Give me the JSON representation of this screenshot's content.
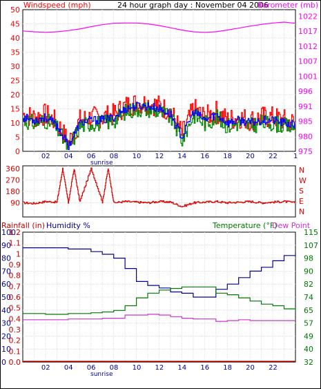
{
  "colors": {
    "windspeed": "#ff0000",
    "barometer": "#ff00ff",
    "humidity": "#000099",
    "temperature": "#007700",
    "dewpoint": "#cc33cc",
    "rainfall": "#cc0000",
    "direction": "#dd0000",
    "windavg": "#0000ff",
    "windgreen": "#008800"
  },
  "chart_data": [
    {
      "type": "line",
      "title": "24 hour graph day : November 04 2006",
      "ylabel_left": "Windspeed (mph)",
      "ylabel_right": "Barometer (mb)",
      "ylim_left": [
        0,
        50
      ],
      "yticks_left": [
        "0",
        "5",
        "10",
        "15",
        "20",
        "25",
        "30",
        "35",
        "40",
        "45",
        "50"
      ],
      "ylim_right": [
        975,
        1025
      ],
      "yticks_right": [
        "975",
        "980",
        "985",
        "991",
        "996",
        "1001",
        "1007",
        "1012",
        "1017",
        "1022"
      ],
      "xticks": [
        "02",
        "04",
        "06",
        "08",
        "10",
        "12",
        "14",
        "16",
        "18",
        "20",
        "22",
        "1"
      ],
      "xannotation": "sunrise",
      "grid": true,
      "series": [
        {
          "name": "Windspeed (mph)",
          "axis": "left",
          "x": [
            0,
            1,
            2,
            3,
            4,
            5,
            6,
            7,
            8,
            9,
            10,
            11,
            12,
            13,
            14,
            15,
            16,
            17,
            18,
            19,
            20,
            21,
            22,
            23,
            24
          ],
          "values": [
            13,
            12,
            13,
            10,
            3,
            11,
            12,
            12,
            13,
            16,
            17,
            17,
            16,
            14,
            6,
            15,
            12,
            14,
            11,
            12,
            11,
            12,
            12,
            11,
            10
          ]
        },
        {
          "name": "Barometer (mb)",
          "axis": "right",
          "x": [
            0,
            1,
            2,
            3,
            4,
            5,
            6,
            7,
            8,
            9,
            10,
            11,
            12,
            13,
            14,
            15,
            16,
            17,
            18,
            19,
            20,
            21,
            22,
            23,
            24
          ],
          "values": [
            1017.5,
            1017.2,
            1017.0,
            1017.2,
            1017.6,
            1018.2,
            1019.0,
            1019.7,
            1020.2,
            1020.3,
            1020.3,
            1020.0,
            1019.4,
            1018.6,
            1017.8,
            1017.2,
            1017.0,
            1017.2,
            1017.8,
            1018.5,
            1019.2,
            1019.8,
            1020.3,
            1020.6,
            1020.2
          ]
        }
      ]
    },
    {
      "type": "line",
      "ylim": [
        0,
        360
      ],
      "yticks": [
        "90",
        "180",
        "270",
        "360"
      ],
      "yticks_right": [
        "N",
        "W",
        "S",
        "E",
        "N"
      ],
      "series": [
        {
          "name": "Wind direction",
          "x": [
            0,
            1,
            2,
            3,
            3.5,
            4,
            4.5,
            5,
            6,
            7,
            7.5,
            8,
            9,
            10,
            11,
            12,
            13,
            14,
            15,
            16,
            17,
            18,
            19,
            20,
            21,
            22,
            23,
            24
          ],
          "values": [
            90,
            85,
            100,
            95,
            360,
            90,
            360,
            100,
            360,
            95,
            360,
            90,
            100,
            95,
            90,
            100,
            95,
            60,
            90,
            95,
            100,
            90,
            95,
            100,
            90,
            95,
            100,
            90
          ]
        }
      ]
    },
    {
      "type": "line",
      "ylabel_left": "Rainfall (in)",
      "ylabel_left2": "Humidity %",
      "ylabel_right": "Temperature (°F)",
      "ylabel_right2": "Dew Point",
      "ylim": [
        0,
        100
      ],
      "yticks_left": [
        "0",
        "10",
        "20",
        "30",
        "40",
        "50",
        "60",
        "70",
        "80",
        "90",
        "100"
      ],
      "yticks_rain": [
        "0.0",
        "0.1",
        "0.2",
        "0.3",
        "0.4",
        "0.5",
        "0.6",
        "0.7",
        "0.8",
        "0.9",
        "1",
        "1.1",
        "1.2"
      ],
      "ylim_right": [
        32,
        115
      ],
      "yticks_right": [
        "32",
        "40",
        "49",
        "57",
        "65",
        "74",
        "82",
        "90",
        "98",
        "107",
        "115"
      ],
      "xticks": [
        "02",
        "04",
        "06",
        "08",
        "10",
        "12",
        "14",
        "16",
        "18",
        "20",
        "22"
      ],
      "xannotation": "sunrise",
      "series": [
        {
          "name": "Humidity %",
          "axis": "left",
          "x": [
            0,
            2,
            4,
            6,
            7,
            8,
            9,
            10,
            11,
            12,
            13,
            14,
            15,
            16,
            17,
            18,
            19,
            20,
            21,
            22,
            23,
            24
          ],
          "values": [
            88,
            88,
            87,
            85,
            83,
            80,
            72,
            62,
            59,
            57,
            54,
            53,
            50,
            50,
            56,
            60,
            65,
            70,
            73,
            78,
            82,
            84
          ]
        },
        {
          "name": "Temperature (°F)",
          "axis": "right",
          "x": [
            0,
            2,
            4,
            6,
            7,
            8,
            9,
            10,
            11,
            12,
            13,
            14,
            15,
            16,
            17,
            18,
            19,
            20,
            21,
            22,
            23,
            24
          ],
          "values": [
            63,
            62.5,
            63,
            63.5,
            64,
            65,
            68,
            73,
            76,
            78,
            79,
            80,
            80,
            80,
            76,
            75,
            73,
            71,
            69,
            68,
            66,
            65
          ]
        },
        {
          "name": "Dew Point",
          "axis": "right",
          "x": [
            0,
            2,
            4,
            6,
            7,
            8,
            9,
            10,
            11,
            12,
            13,
            14,
            15,
            16,
            17,
            18,
            19,
            20,
            21,
            22,
            23,
            24
          ],
          "values": [
            59,
            59,
            59.5,
            59.5,
            60,
            60,
            62,
            62,
            62.5,
            62,
            61,
            60,
            59.5,
            59.5,
            58,
            58.5,
            59,
            58.5,
            58.5,
            58.5,
            58.5,
            58.5
          ]
        },
        {
          "name": "Rainfall (in)",
          "axis": "rain",
          "x": [
            0,
            24
          ],
          "values": [
            0,
            0
          ]
        }
      ]
    }
  ]
}
